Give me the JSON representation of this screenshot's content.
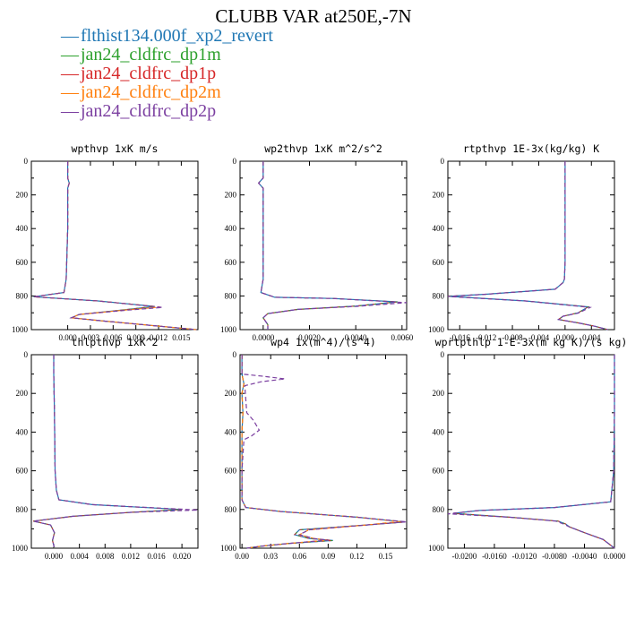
{
  "title": "CLUBB VAR at250E,-7N",
  "legend": [
    {
      "label": "flthist134.000f_xp2_revert",
      "color": "#1f77b4"
    },
    {
      "label": "jan24_cldfrc_dp1m",
      "color": "#2ca02c"
    },
    {
      "label": "jan24_cldfrc_dp1p",
      "color": "#d62728"
    },
    {
      "label": "jan24_cldfrc_dp2m",
      "color": "#ff7f0e"
    },
    {
      "label": "jan24_cldfrc_dp2p",
      "color": "#7b3fa0"
    }
  ],
  "chart_data": [
    {
      "type": "line",
      "title": "wpthvp   1xK m/s",
      "xlim": [
        -0.0048,
        0.0172
      ],
      "ylim": [
        0,
        1000
      ],
      "y_inverted": true,
      "xticks": [
        "0.000",
        "0.003",
        "0.006",
        "0.009",
        "0.012",
        "0.015"
      ],
      "xtick_values": [
        0,
        0.003,
        0.006,
        0.009,
        0.012,
        0.015
      ],
      "yticks": [
        "0",
        "200",
        "400",
        "600",
        "800",
        "1000"
      ],
      "series": [
        {
          "x": [
            0.0,
            0.0,
            0.0002,
            0.0,
            0.0,
            -0.0002,
            -0.0005,
            -0.0045,
            0.004,
            0.0115,
            0.008,
            0.0015,
            0.0005,
            0.005,
            0.011,
            0.017
          ],
          "y": [
            0,
            100,
            130,
            160,
            400,
            700,
            780,
            805,
            830,
            862,
            880,
            910,
            930,
            950,
            975,
            1000
          ]
        },
        {
          "x": [
            0.0,
            0.0,
            0.0002,
            0.0,
            0.0,
            -0.0002,
            -0.0005,
            -0.0045,
            0.004,
            0.0122,
            0.008,
            0.0015,
            0.0005,
            0.005,
            0.011,
            0.017
          ],
          "y": [
            0,
            100,
            130,
            160,
            400,
            700,
            780,
            805,
            830,
            866,
            882,
            910,
            930,
            950,
            975,
            1000
          ]
        },
        {
          "x": [
            0.0,
            0.0,
            0.0002,
            0.0,
            0.0,
            -0.0002,
            -0.0005,
            -0.0045,
            0.004,
            0.0125,
            0.008,
            0.0015,
            0.0005,
            0.005,
            0.011,
            0.017
          ],
          "y": [
            0,
            100,
            130,
            160,
            400,
            700,
            780,
            805,
            830,
            868,
            884,
            910,
            930,
            950,
            975,
            1000
          ]
        }
      ]
    },
    {
      "type": "line",
      "title": "wp2thvp   1xK m^2/s^2",
      "xlim": [
        -0.001,
        0.0062
      ],
      "ylim": [
        0,
        1000
      ],
      "y_inverted": true,
      "xticks": [
        "0.0000",
        "0.0020",
        "0.0040",
        "0.0060"
      ],
      "xtick_values": [
        0,
        0.002,
        0.004,
        0.006
      ],
      "yticks": [
        "0",
        "200",
        "400",
        "600",
        "800",
        "1000"
      ],
      "series": [
        {
          "x": [
            0.0,
            0.0,
            -0.0002,
            0.0,
            0.0,
            0.0,
            -0.0001,
            0.0005,
            0.003,
            0.0058,
            0.004,
            0.0015,
            0.0002,
            0.0,
            0.0001,
            0.0002,
            0.0002
          ],
          "y": [
            0,
            100,
            130,
            160,
            400,
            700,
            780,
            808,
            815,
            835,
            860,
            880,
            905,
            930,
            950,
            970,
            1000
          ]
        },
        {
          "x": [
            0.0,
            0.0,
            -0.0002,
            0.0,
            0.0,
            0.0,
            -0.0001,
            0.0005,
            0.003,
            0.0062,
            0.004,
            0.0015,
            0.0002,
            0.0,
            0.0001,
            0.0002,
            0.0002
          ],
          "y": [
            0,
            100,
            130,
            160,
            400,
            700,
            780,
            808,
            815,
            840,
            862,
            880,
            905,
            930,
            950,
            970,
            1000
          ]
        }
      ]
    },
    {
      "type": "line",
      "title": "rtpthvp   1E-3x(kg/kg) K",
      "xlim": [
        -0.0178,
        0.0075
      ],
      "ylim": [
        0,
        1000
      ],
      "y_inverted": true,
      "xticks": [
        "-0.016",
        "-0.012",
        "-0.008",
        "-0.004",
        "0.000",
        "0.004"
      ],
      "xtick_values": [
        -0.016,
        -0.012,
        -0.008,
        -0.004,
        0,
        0.004
      ],
      "yticks": [
        "0",
        "200",
        "400",
        "600",
        "800",
        "1000"
      ],
      "series": [
        {
          "x": [
            0.0,
            0.0,
            0.0,
            -0.0001,
            -0.0003,
            -0.0015,
            -0.012,
            -0.0178,
            -0.006,
            0.0035,
            0.002,
            -0.0003,
            -0.001,
            0.002,
            0.0045,
            0.0065
          ],
          "y": [
            0,
            200,
            600,
            700,
            720,
            760,
            790,
            802,
            830,
            865,
            900,
            920,
            940,
            960,
            980,
            1000
          ]
        },
        {
          "x": [
            0.0,
            0.0,
            0.0,
            -0.0001,
            -0.0003,
            -0.0015,
            -0.012,
            -0.0178,
            -0.006,
            0.0038,
            0.002,
            -0.0003,
            -0.001,
            0.002,
            0.0045,
            0.0065
          ],
          "y": [
            0,
            200,
            600,
            700,
            720,
            760,
            790,
            803,
            830,
            868,
            902,
            920,
            940,
            960,
            980,
            1000
          ]
        }
      ]
    },
    {
      "type": "line",
      "title": "thlpthvp   1xK^2",
      "xlim": [
        -0.0035,
        0.0225
      ],
      "ylim": [
        0,
        1000
      ],
      "y_inverted": true,
      "xticks": [
        "0.000",
        "0.004",
        "0.008",
        "0.012",
        "0.016",
        "0.020"
      ],
      "xtick_values": [
        0,
        0.004,
        0.008,
        0.012,
        0.016,
        0.02
      ],
      "yticks": [
        "0",
        "200",
        "400",
        "600",
        "800",
        "1000"
      ],
      "series": [
        {
          "x": [
            0.0,
            0.0,
            0.0001,
            0.0002,
            0.0004,
            0.0008,
            0.006,
            0.02,
            0.012,
            0.003,
            -0.0032,
            -0.0005,
            0.0001,
            -0.0002,
            0.0001
          ],
          "y": [
            0,
            100,
            300,
            600,
            700,
            750,
            775,
            800,
            815,
            835,
            860,
            880,
            920,
            960,
            1000
          ]
        },
        {
          "x": [
            0.0,
            0.0,
            0.0001,
            0.0002,
            0.0004,
            0.0008,
            0.006,
            0.0225,
            0.012,
            0.003,
            -0.0032,
            -0.0005,
            0.0001,
            -0.0002,
            0.0001
          ],
          "y": [
            0,
            100,
            300,
            600,
            700,
            750,
            775,
            803,
            815,
            835,
            860,
            880,
            920,
            960,
            1000
          ]
        }
      ]
    },
    {
      "type": "line",
      "title": "wp4   1x(m^4)/(s^4)",
      "xlim": [
        -0.002,
        0.172
      ],
      "ylim": [
        0,
        1000
      ],
      "y_inverted": true,
      "xticks": [
        "0.00",
        "0.03",
        "0.06",
        "0.09",
        "0.12",
        "0.15"
      ],
      "xtick_values": [
        0,
        0.03,
        0.06,
        0.09,
        0.12,
        0.15
      ],
      "yticks": [
        "0",
        "200",
        "400",
        "600",
        "800",
        "1000"
      ],
      "series": [
        {
          "x": [
            0.0,
            0.0,
            0.002,
            0.0,
            0.001,
            0.0,
            0.0,
            0.0,
            0.004,
            0.04,
            0.12,
            0.17,
            0.13,
            0.06,
            0.055,
            0.07,
            0.095,
            0.05,
            0.02,
            0.005
          ],
          "y": [
            0,
            100,
            150,
            200,
            300,
            400,
            600,
            750,
            790,
            810,
            840,
            865,
            880,
            905,
            930,
            950,
            960,
            975,
            990,
            1000
          ]
        },
        {
          "x": [
            0.0,
            0.0,
            0.002,
            0.0,
            0.001,
            0.0,
            0.0,
            0.0,
            0.004,
            0.04,
            0.12,
            0.165,
            0.13,
            0.07,
            0.06,
            0.075,
            0.09,
            0.05,
            0.02,
            0.005
          ],
          "y": [
            0,
            100,
            150,
            200,
            300,
            400,
            600,
            750,
            790,
            810,
            840,
            862,
            880,
            905,
            930,
            950,
            958,
            975,
            990,
            1000
          ]
        },
        {
          "x": [
            0.0,
            0.0,
            0.0,
            0.02,
            0.045,
            0.02,
            0.003,
            0.005,
            0.012,
            0.018,
            0.01,
            0.002,
            0.0,
            0.0,
            0.004,
            0.04,
            0.12,
            0.172,
            0.13,
            0.07,
            0.06,
            0.075,
            0.09,
            0.05,
            0.02,
            0.005
          ],
          "y": [
            0,
            90,
            100,
            110,
            125,
            140,
            160,
            300,
            340,
            390,
            420,
            440,
            600,
            750,
            790,
            810,
            840,
            864,
            880,
            905,
            930,
            950,
            958,
            975,
            990,
            1000
          ]
        }
      ]
    },
    {
      "type": "line",
      "title": "wprtpthlp   1-E-3x(m kg K)/(s kg)",
      "xlim": [
        -0.0222,
        0.0
      ],
      "ylim": [
        0,
        1000
      ],
      "y_inverted": true,
      "xticks": [
        "-0.0200",
        "-0.0160",
        "-0.0120",
        "-0.0080",
        "-0.0040",
        "0.0000"
      ],
      "xtick_values": [
        -0.02,
        -0.016,
        -0.012,
        -0.008,
        -0.004,
        0
      ],
      "yticks": [
        "0",
        "200",
        "400",
        "600",
        "800",
        "1000"
      ],
      "series": [
        {
          "x": [
            0.0,
            0.0,
            -0.0001,
            -0.0005,
            -0.008,
            -0.018,
            -0.0215,
            -0.014,
            -0.0075,
            -0.0065,
            -0.006,
            -0.004,
            -0.0015,
            0.0
          ],
          "y": [
            0,
            300,
            600,
            760,
            790,
            805,
            820,
            840,
            860,
            875,
            890,
            920,
            955,
            1000
          ]
        },
        {
          "x": [
            0.0,
            0.0,
            -0.0001,
            -0.0005,
            -0.008,
            -0.018,
            -0.0222,
            -0.014,
            -0.0078,
            -0.0068,
            -0.006,
            -0.004,
            -0.0015,
            0.0
          ],
          "y": [
            0,
            300,
            600,
            760,
            790,
            805,
            822,
            840,
            860,
            875,
            890,
            920,
            955,
            1000
          ]
        }
      ]
    }
  ]
}
